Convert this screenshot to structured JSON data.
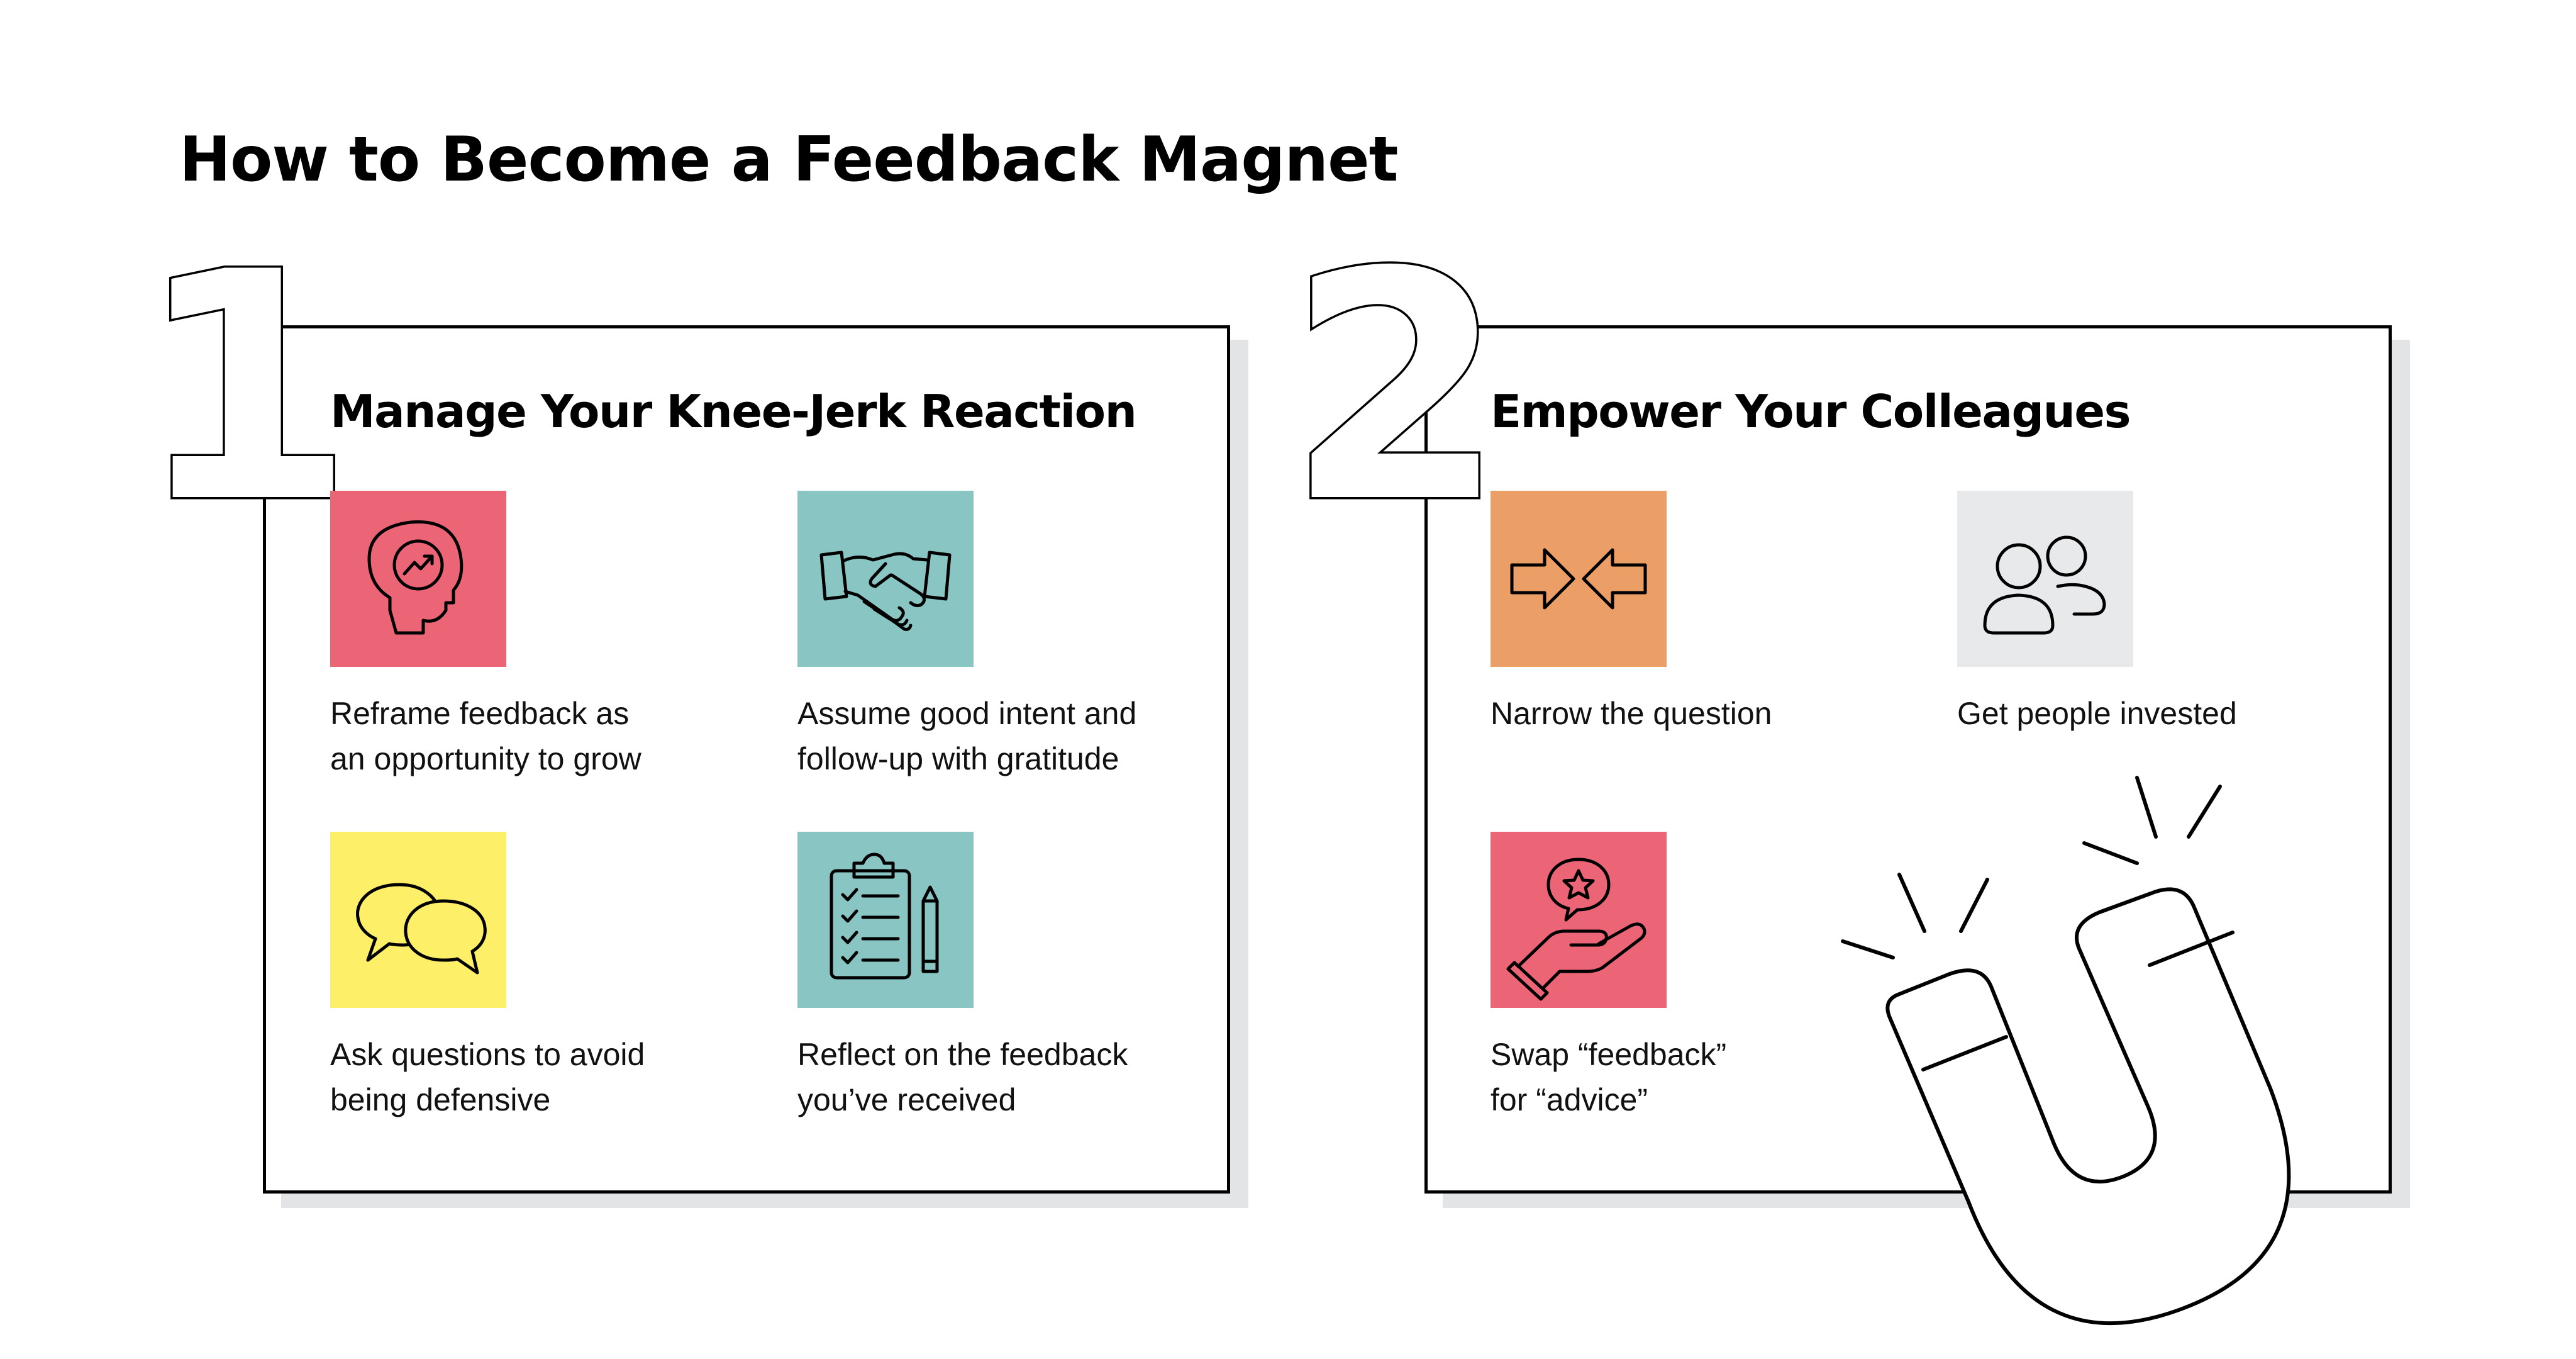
{
  "title": "How to Become a Feedback Magnet",
  "sections": [
    {
      "number": "1",
      "heading": "Manage Your Knee-Jerk Reaction",
      "items": [
        {
          "label": "Reframe feedback as\nan opportunity to grow",
          "icon": "head-growth-icon",
          "color": "#ec6576"
        },
        {
          "label": "Assume good intent and\nfollow-up with gratitude",
          "icon": "handshake-icon",
          "color": "#88c5c3"
        },
        {
          "label": "Ask questions to avoid\nbeing defensive",
          "icon": "speech-bubbles-icon",
          "color": "#feef68"
        },
        {
          "label": "Reflect on the feedback\nyou’ve received",
          "icon": "clipboard-checklist-icon",
          "color": "#88c5c3"
        }
      ]
    },
    {
      "number": "2",
      "heading": "Empower Your Colleagues",
      "items": [
        {
          "label": "Narrow the question",
          "icon": "converging-arrows-icon",
          "color": "#eb9e66"
        },
        {
          "label": "Get people invested",
          "icon": "people-icon",
          "color": "#e8e9ea"
        },
        {
          "label": "Swap “feedback”\nfor “advice”",
          "icon": "hand-star-bubble-icon",
          "color": "#ec6576"
        }
      ]
    }
  ],
  "decoration": {
    "illustration": "horseshoe-magnet-icon"
  },
  "colors": {
    "shadow": "#e3e4e6",
    "outline": "#000000",
    "background": "#ffffff"
  }
}
